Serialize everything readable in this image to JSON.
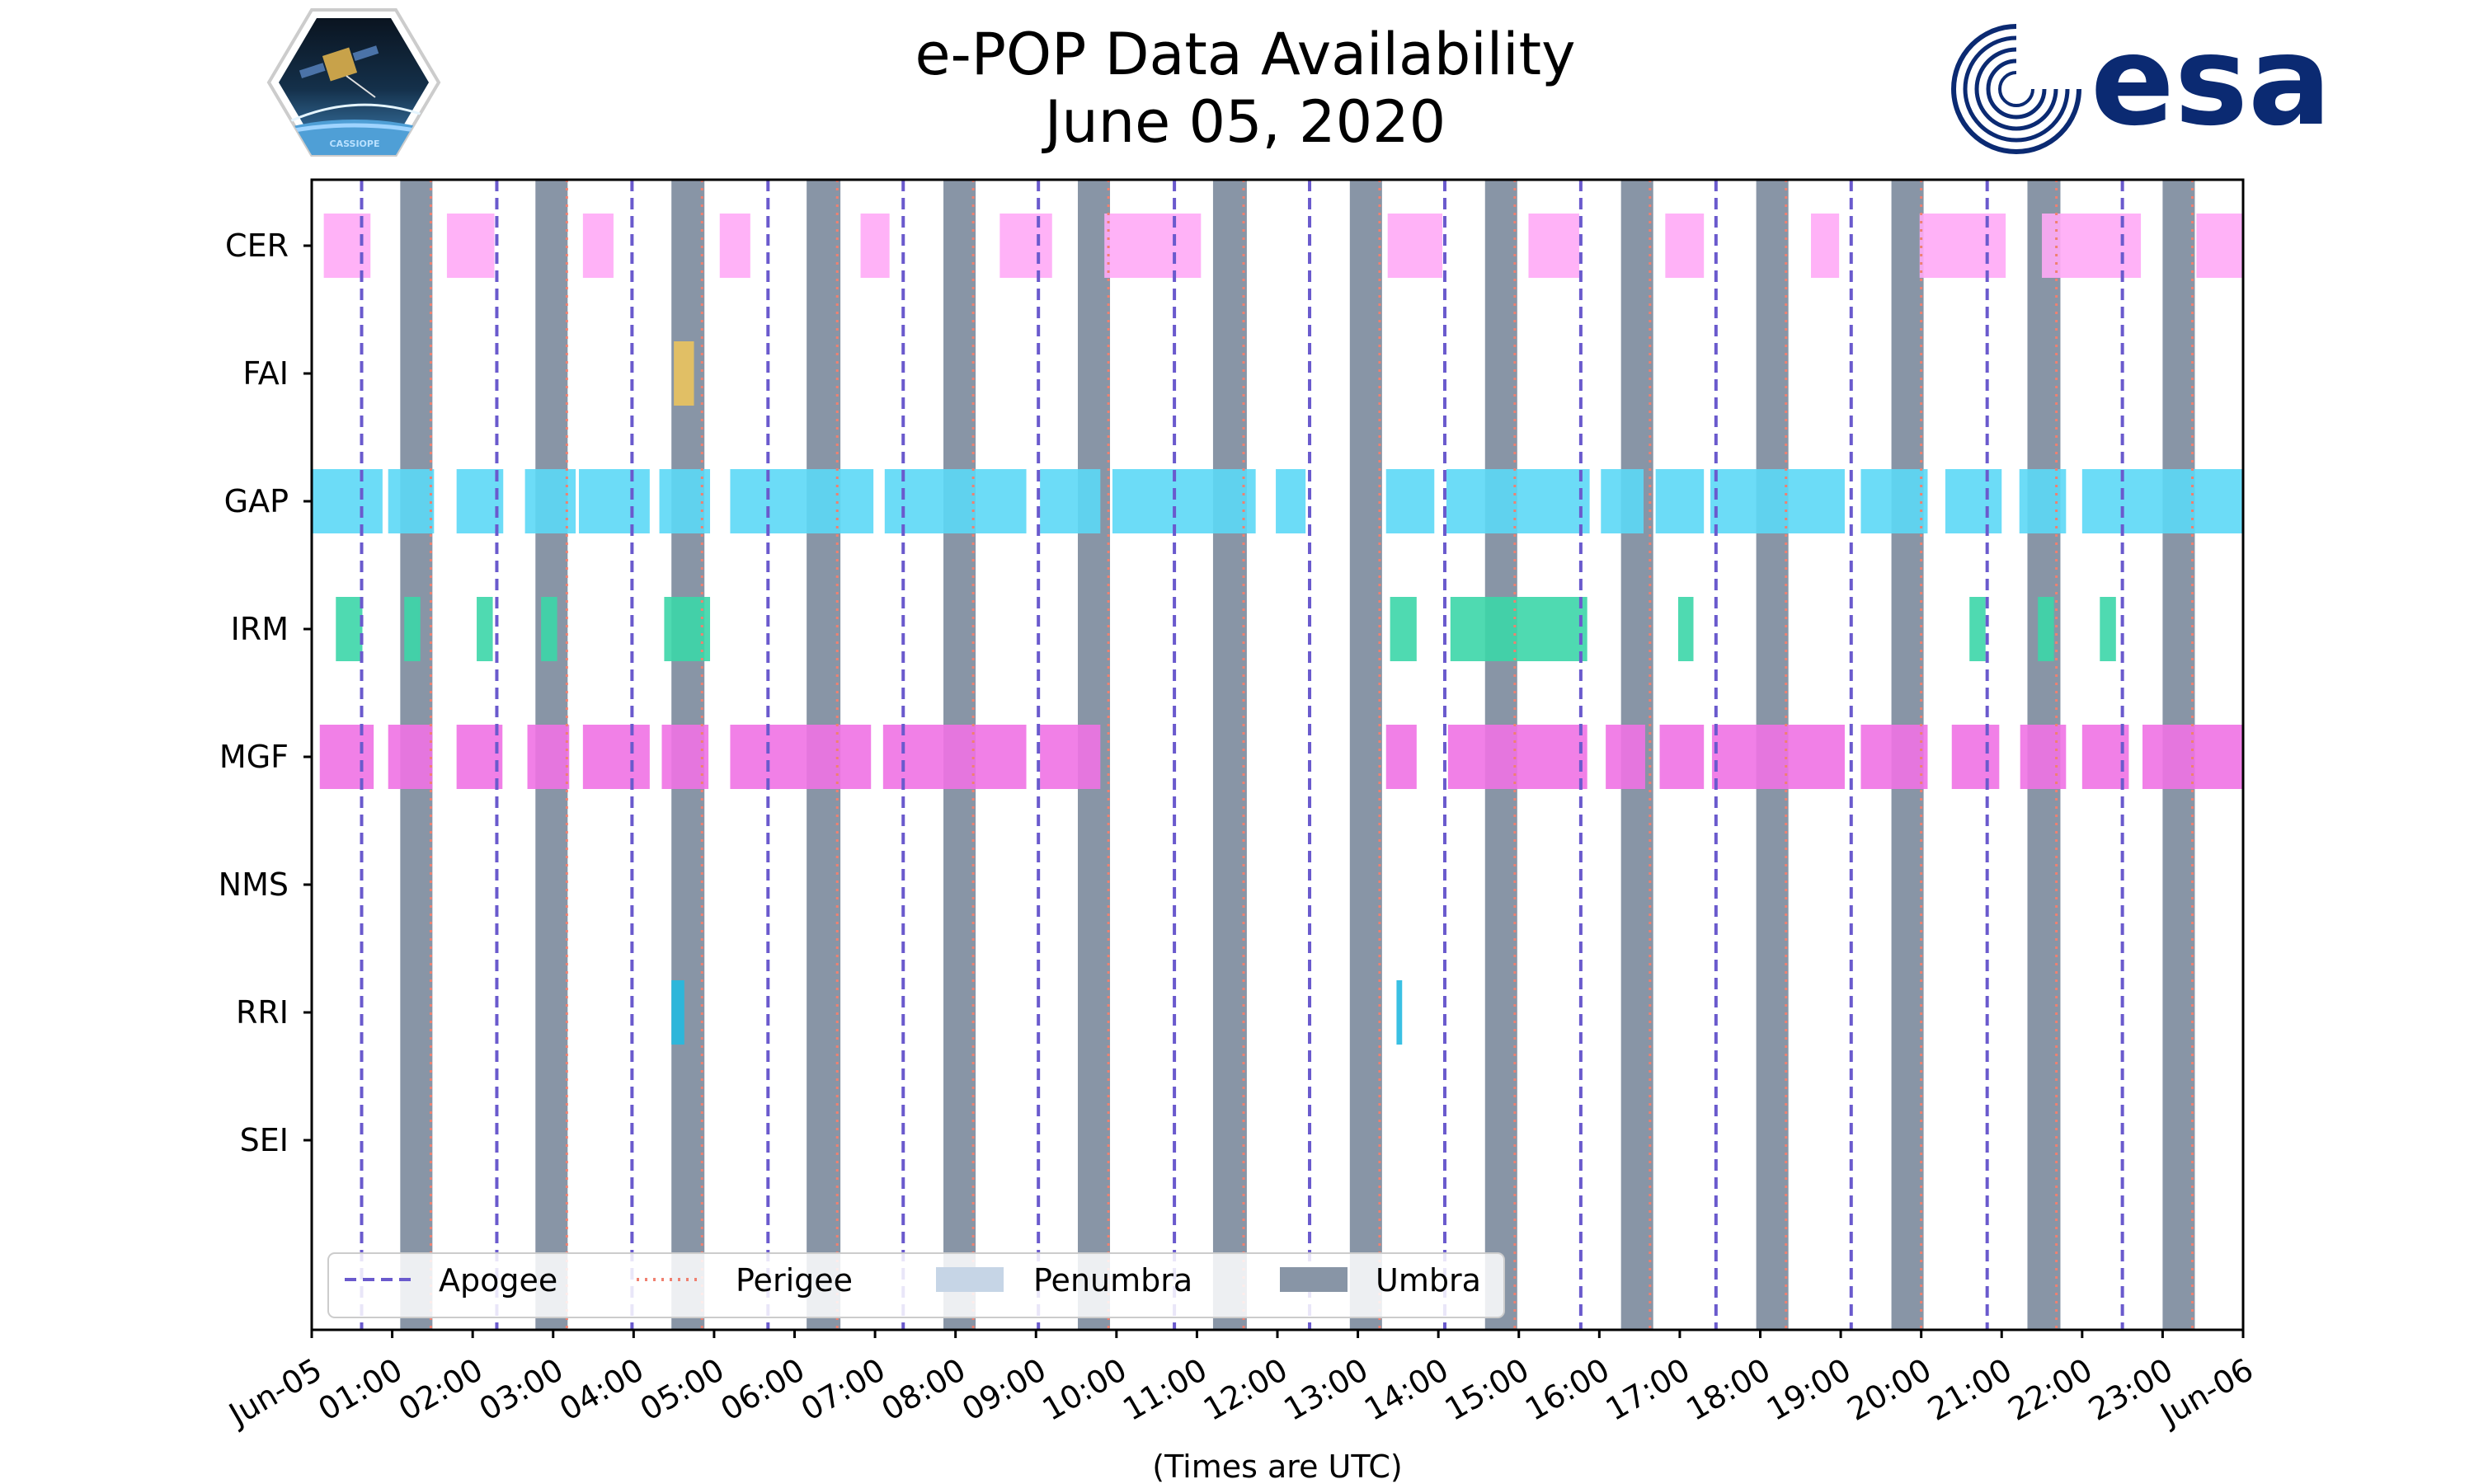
{
  "title": {
    "line1": "e-POP Data Availability",
    "line2": "June 05, 2020"
  },
  "logos": {
    "left_mission": "CASSIOPE",
    "right_agency": "esa"
  },
  "colors": {
    "CER": "#ffaaf6",
    "FAI": "#ebc35e",
    "GAP": "#5cd8f6",
    "IRM": "#3cd6a8",
    "MGF": "#ef72e4",
    "RRI": "#25b9e0",
    "umbra": "#8895a6",
    "penumbra": "#c6d5e6",
    "apogee": "#6a5acd",
    "perigee": "#f08070",
    "esa_blue": "#0b2a72"
  },
  "chart_data": {
    "type": "timeline",
    "title": "e-POP Data Availability June 05, 2020",
    "xlabel": "(Times are UTC)",
    "ylabel": "",
    "x_range_hours": [
      0,
      24
    ],
    "x_ticks": [
      "Jun-05",
      "01:00",
      "02:00",
      "03:00",
      "04:00",
      "05:00",
      "06:00",
      "07:00",
      "08:00",
      "09:00",
      "10:00",
      "11:00",
      "12:00",
      "13:00",
      "14:00",
      "15:00",
      "16:00",
      "17:00",
      "18:00",
      "19:00",
      "20:00",
      "21:00",
      "22:00",
      "23:00",
      "Jun-06"
    ],
    "categories": [
      "CER",
      "FAI",
      "GAP",
      "IRM",
      "MGF",
      "NMS",
      "RRI",
      "SEI"
    ],
    "series": [
      {
        "name": "CER",
        "intervals": [
          [
            0.15,
            0.73
          ],
          [
            1.68,
            2.27
          ],
          [
            3.37,
            3.75
          ],
          [
            5.07,
            5.45
          ],
          [
            6.82,
            7.18
          ],
          [
            8.55,
            9.2
          ],
          [
            9.85,
            11.05
          ],
          [
            13.37,
            14.05
          ],
          [
            15.12,
            15.75
          ],
          [
            16.82,
            17.3
          ],
          [
            18.63,
            18.98
          ],
          [
            19.98,
            21.05
          ],
          [
            21.5,
            22.73
          ],
          [
            23.42,
            24.0
          ]
        ]
      },
      {
        "name": "FAI",
        "intervals": [
          [
            4.5,
            4.75
          ]
        ]
      },
      {
        "name": "GAP",
        "intervals": [
          [
            0.0,
            0.88
          ],
          [
            0.95,
            1.52
          ],
          [
            1.8,
            2.38
          ],
          [
            2.65,
            3.28
          ],
          [
            3.32,
            4.2
          ],
          [
            4.32,
            4.95
          ],
          [
            5.2,
            6.98
          ],
          [
            7.12,
            8.88
          ],
          [
            9.05,
            9.8
          ],
          [
            9.95,
            11.73
          ],
          [
            11.98,
            12.35
          ],
          [
            13.35,
            13.95
          ],
          [
            14.1,
            15.88
          ],
          [
            16.02,
            16.55
          ],
          [
            16.7,
            17.3
          ],
          [
            17.38,
            19.05
          ],
          [
            19.25,
            20.08
          ],
          [
            20.3,
            21.0
          ],
          [
            21.22,
            21.8
          ],
          [
            22.0,
            24.0
          ]
        ]
      },
      {
        "name": "IRM",
        "intervals": [
          [
            0.3,
            0.63
          ],
          [
            1.15,
            1.35
          ],
          [
            2.05,
            2.25
          ],
          [
            2.85,
            3.05
          ],
          [
            4.38,
            4.95
          ],
          [
            13.4,
            13.73
          ],
          [
            14.15,
            15.85
          ],
          [
            16.98,
            17.17
          ],
          [
            20.6,
            20.8
          ],
          [
            21.45,
            21.65
          ],
          [
            22.22,
            22.42
          ]
        ]
      },
      {
        "name": "MGF",
        "intervals": [
          [
            0.1,
            0.77
          ],
          [
            0.95,
            1.5
          ],
          [
            1.8,
            2.37
          ],
          [
            2.68,
            3.2
          ],
          [
            3.37,
            4.2
          ],
          [
            4.35,
            4.93
          ],
          [
            5.2,
            6.95
          ],
          [
            7.1,
            8.88
          ],
          [
            9.05,
            9.8
          ],
          [
            13.35,
            13.73
          ],
          [
            14.12,
            15.85
          ],
          [
            16.08,
            16.57
          ],
          [
            16.75,
            17.3
          ],
          [
            17.4,
            19.05
          ],
          [
            19.25,
            20.08
          ],
          [
            20.38,
            20.97
          ],
          [
            21.23,
            21.8
          ],
          [
            22.0,
            22.58
          ],
          [
            22.75,
            24.0
          ]
        ]
      },
      {
        "name": "NMS",
        "intervals": []
      },
      {
        "name": "RRI",
        "intervals": [
          [
            4.47,
            4.63
          ],
          [
            13.48,
            13.55
          ]
        ]
      },
      {
        "name": "SEI",
        "intervals": []
      }
    ],
    "umbra": [
      [
        1.1,
        1.5
      ],
      [
        2.78,
        3.18
      ],
      [
        4.47,
        4.88
      ],
      [
        6.15,
        6.57
      ],
      [
        7.85,
        8.25
      ],
      [
        9.52,
        9.92
      ],
      [
        11.2,
        11.62
      ],
      [
        12.9,
        13.3
      ],
      [
        14.58,
        14.98
      ],
      [
        16.27,
        16.67
      ],
      [
        17.95,
        18.35
      ],
      [
        19.63,
        20.03
      ],
      [
        21.32,
        21.73
      ],
      [
        23.0,
        23.4
      ]
    ],
    "apogee_hours": [
      0.62,
      2.3,
      3.98,
      5.67,
      7.35,
      9.03,
      10.72,
      12.4,
      14.08,
      15.77,
      17.45,
      19.13,
      20.82,
      22.5
    ],
    "perigee_hours": [
      1.48,
      3.17,
      4.85,
      6.53,
      8.22,
      9.9,
      11.58,
      13.27,
      14.95,
      16.63,
      18.32,
      20.0,
      21.68,
      23.37
    ],
    "legend": {
      "placement": "bottom-left",
      "entries": [
        "Apogee",
        "Perigee",
        "Penumbra",
        "Umbra"
      ]
    }
  }
}
